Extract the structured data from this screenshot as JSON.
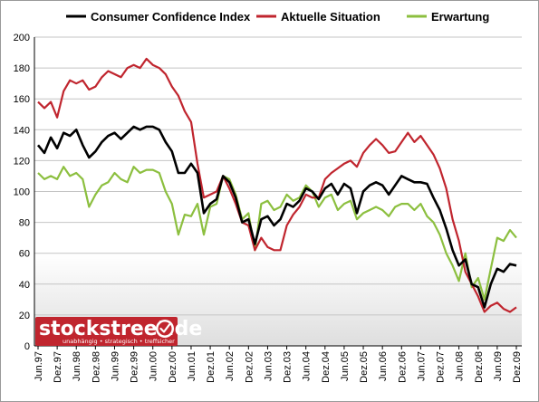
{
  "chart_data": {
    "type": "line",
    "title": "",
    "xlabel": "",
    "ylabel": "",
    "ylim": [
      0,
      200
    ],
    "yticks": [
      0,
      20,
      40,
      60,
      80,
      100,
      120,
      140,
      160,
      180,
      200
    ],
    "grid": "horizontal",
    "legend_position": "top",
    "x_range": [
      "1997-06",
      "2009-12"
    ],
    "xtick_labels": [
      "Jun.97",
      "Dez.97",
      "Jun.98",
      "Dez.98",
      "Jun.99",
      "Dez.99",
      "Jun.00",
      "Dez.00",
      "Jun.01",
      "Dez.01",
      "Jun.02",
      "Dez.02",
      "Jun.03",
      "Dez.03",
      "Jun.04",
      "Dez.04",
      "Jun.05",
      "Dez.05",
      "Jun.06",
      "Dez.06",
      "Jun.07",
      "Dez.07",
      "Jun.08",
      "Dez.08",
      "Jun.09",
      "Dez.09"
    ],
    "series": [
      {
        "name": "Consumer Confidence Index",
        "color": "#000000",
        "points": [
          [
            "1997-06",
            130
          ],
          [
            "1997-08",
            125
          ],
          [
            "1997-10",
            135
          ],
          [
            "1997-12",
            128
          ],
          [
            "1998-02",
            138
          ],
          [
            "1998-04",
            136
          ],
          [
            "1998-06",
            140
          ],
          [
            "1998-08",
            130
          ],
          [
            "1998-10",
            122
          ],
          [
            "1998-12",
            126
          ],
          [
            "1999-02",
            132
          ],
          [
            "1999-04",
            136
          ],
          [
            "1999-06",
            138
          ],
          [
            "1999-08",
            134
          ],
          [
            "1999-10",
            138
          ],
          [
            "1999-12",
            142
          ],
          [
            "2000-02",
            140
          ],
          [
            "2000-04",
            142
          ],
          [
            "2000-06",
            142
          ],
          [
            "2000-08",
            140
          ],
          [
            "2000-10",
            132
          ],
          [
            "2000-12",
            126
          ],
          [
            "2001-02",
            112
          ],
          [
            "2001-04",
            112
          ],
          [
            "2001-06",
            118
          ],
          [
            "2001-08",
            112
          ],
          [
            "2001-10",
            86
          ],
          [
            "2001-12",
            92
          ],
          [
            "2002-02",
            95
          ],
          [
            "2002-04",
            110
          ],
          [
            "2002-06",
            106
          ],
          [
            "2002-08",
            96
          ],
          [
            "2002-10",
            80
          ],
          [
            "2002-12",
            82
          ],
          [
            "2003-02",
            66
          ],
          [
            "2003-04",
            82
          ],
          [
            "2003-06",
            84
          ],
          [
            "2003-08",
            78
          ],
          [
            "2003-10",
            82
          ],
          [
            "2003-12",
            92
          ],
          [
            "2004-02",
            90
          ],
          [
            "2004-04",
            94
          ],
          [
            "2004-06",
            102
          ],
          [
            "2004-08",
            100
          ],
          [
            "2004-10",
            95
          ],
          [
            "2004-12",
            102
          ],
          [
            "2005-02",
            105
          ],
          [
            "2005-04",
            98
          ],
          [
            "2005-06",
            105
          ],
          [
            "2005-08",
            102
          ],
          [
            "2005-10",
            86
          ],
          [
            "2005-12",
            100
          ],
          [
            "2006-02",
            104
          ],
          [
            "2006-04",
            106
          ],
          [
            "2006-06",
            104
          ],
          [
            "2006-08",
            98
          ],
          [
            "2006-10",
            104
          ],
          [
            "2006-12",
            110
          ],
          [
            "2007-02",
            108
          ],
          [
            "2007-04",
            106
          ],
          [
            "2007-06",
            106
          ],
          [
            "2007-08",
            105
          ],
          [
            "2007-10",
            96
          ],
          [
            "2007-12",
            88
          ],
          [
            "2008-02",
            76
          ],
          [
            "2008-04",
            62
          ],
          [
            "2008-06",
            52
          ],
          [
            "2008-08",
            56
          ],
          [
            "2008-10",
            40
          ],
          [
            "2008-12",
            38
          ],
          [
            "2009-02",
            25
          ],
          [
            "2009-04",
            40
          ],
          [
            "2009-06",
            50
          ],
          [
            "2009-08",
            48
          ],
          [
            "2009-10",
            53
          ],
          [
            "2009-12",
            52
          ]
        ]
      },
      {
        "name": "Aktuelle Situation",
        "color": "#c0252e",
        "points": [
          [
            "1997-06",
            158
          ],
          [
            "1997-08",
            154
          ],
          [
            "1997-10",
            158
          ],
          [
            "1997-12",
            148
          ],
          [
            "1998-02",
            165
          ],
          [
            "1998-04",
            172
          ],
          [
            "1998-06",
            170
          ],
          [
            "1998-08",
            172
          ],
          [
            "1998-10",
            166
          ],
          [
            "1998-12",
            168
          ],
          [
            "1999-02",
            174
          ],
          [
            "1999-04",
            178
          ],
          [
            "1999-06",
            176
          ],
          [
            "1999-08",
            174
          ],
          [
            "1999-10",
            180
          ],
          [
            "1999-12",
            182
          ],
          [
            "2000-02",
            180
          ],
          [
            "2000-04",
            186
          ],
          [
            "2000-06",
            182
          ],
          [
            "2000-08",
            180
          ],
          [
            "2000-10",
            176
          ],
          [
            "2000-12",
            168
          ],
          [
            "2001-02",
            162
          ],
          [
            "2001-04",
            152
          ],
          [
            "2001-06",
            145
          ],
          [
            "2001-08",
            118
          ],
          [
            "2001-10",
            96
          ],
          [
            "2001-12",
            98
          ],
          [
            "2002-02",
            100
          ],
          [
            "2002-04",
            110
          ],
          [
            "2002-06",
            102
          ],
          [
            "2002-08",
            92
          ],
          [
            "2002-10",
            80
          ],
          [
            "2002-12",
            78
          ],
          [
            "2003-02",
            62
          ],
          [
            "2003-04",
            70
          ],
          [
            "2003-06",
            64
          ],
          [
            "2003-08",
            62
          ],
          [
            "2003-10",
            62
          ],
          [
            "2003-12",
            78
          ],
          [
            "2004-02",
            85
          ],
          [
            "2004-04",
            90
          ],
          [
            "2004-06",
            98
          ],
          [
            "2004-08",
            96
          ],
          [
            "2004-10",
            96
          ],
          [
            "2004-12",
            108
          ],
          [
            "2005-02",
            112
          ],
          [
            "2005-04",
            115
          ],
          [
            "2005-06",
            118
          ],
          [
            "2005-08",
            120
          ],
          [
            "2005-10",
            116
          ],
          [
            "2005-12",
            125
          ],
          [
            "2006-02",
            130
          ],
          [
            "2006-04",
            134
          ],
          [
            "2006-06",
            130
          ],
          [
            "2006-08",
            125
          ],
          [
            "2006-10",
            126
          ],
          [
            "2006-12",
            132
          ],
          [
            "2007-02",
            138
          ],
          [
            "2007-04",
            132
          ],
          [
            "2007-06",
            136
          ],
          [
            "2007-08",
            130
          ],
          [
            "2007-10",
            124
          ],
          [
            "2007-12",
            115
          ],
          [
            "2008-02",
            102
          ],
          [
            "2008-04",
            82
          ],
          [
            "2008-06",
            68
          ],
          [
            "2008-08",
            48
          ],
          [
            "2008-10",
            40
          ],
          [
            "2008-12",
            32
          ],
          [
            "2009-02",
            22
          ],
          [
            "2009-04",
            26
          ],
          [
            "2009-06",
            28
          ],
          [
            "2009-08",
            24
          ],
          [
            "2009-10",
            22
          ],
          [
            "2009-12",
            25
          ]
        ]
      },
      {
        "name": "Erwartung",
        "color": "#8cbf3f",
        "points": [
          [
            "1997-06",
            112
          ],
          [
            "1997-08",
            108
          ],
          [
            "1997-10",
            110
          ],
          [
            "1997-12",
            108
          ],
          [
            "1998-02",
            116
          ],
          [
            "1998-04",
            110
          ],
          [
            "1998-06",
            112
          ],
          [
            "1998-08",
            108
          ],
          [
            "1998-10",
            90
          ],
          [
            "1998-12",
            98
          ],
          [
            "1999-02",
            104
          ],
          [
            "1999-04",
            106
          ],
          [
            "1999-06",
            112
          ],
          [
            "1999-08",
            108
          ],
          [
            "1999-10",
            106
          ],
          [
            "1999-12",
            116
          ],
          [
            "2000-02",
            112
          ],
          [
            "2000-04",
            114
          ],
          [
            "2000-06",
            114
          ],
          [
            "2000-08",
            112
          ],
          [
            "2000-10",
            100
          ],
          [
            "2000-12",
            92
          ],
          [
            "2001-02",
            72
          ],
          [
            "2001-04",
            85
          ],
          [
            "2001-06",
            84
          ],
          [
            "2001-08",
            92
          ],
          [
            "2001-10",
            72
          ],
          [
            "2001-12",
            90
          ],
          [
            "2002-02",
            92
          ],
          [
            "2002-04",
            110
          ],
          [
            "2002-06",
            108
          ],
          [
            "2002-08",
            98
          ],
          [
            "2002-10",
            82
          ],
          [
            "2002-12",
            86
          ],
          [
            "2003-02",
            62
          ],
          [
            "2003-04",
            92
          ],
          [
            "2003-06",
            94
          ],
          [
            "2003-08",
            88
          ],
          [
            "2003-10",
            90
          ],
          [
            "2003-12",
            98
          ],
          [
            "2004-02",
            94
          ],
          [
            "2004-04",
            96
          ],
          [
            "2004-06",
            104
          ],
          [
            "2004-08",
            100
          ],
          [
            "2004-10",
            90
          ],
          [
            "2004-12",
            96
          ],
          [
            "2005-02",
            98
          ],
          [
            "2005-04",
            88
          ],
          [
            "2005-06",
            92
          ],
          [
            "2005-08",
            94
          ],
          [
            "2005-10",
            82
          ],
          [
            "2005-12",
            86
          ],
          [
            "2006-02",
            88
          ],
          [
            "2006-04",
            90
          ],
          [
            "2006-06",
            88
          ],
          [
            "2006-08",
            84
          ],
          [
            "2006-10",
            90
          ],
          [
            "2006-12",
            92
          ],
          [
            "2007-02",
            92
          ],
          [
            "2007-04",
            88
          ],
          [
            "2007-06",
            92
          ],
          [
            "2007-08",
            84
          ],
          [
            "2007-10",
            80
          ],
          [
            "2007-12",
            72
          ],
          [
            "2008-02",
            60
          ],
          [
            "2008-04",
            52
          ],
          [
            "2008-06",
            42
          ],
          [
            "2008-08",
            60
          ],
          [
            "2008-10",
            38
          ],
          [
            "2008-12",
            44
          ],
          [
            "2009-02",
            30
          ],
          [
            "2009-04",
            50
          ],
          [
            "2009-06",
            70
          ],
          [
            "2009-08",
            68
          ],
          [
            "2009-10",
            75
          ],
          [
            "2009-12",
            70
          ]
        ]
      }
    ]
  },
  "logo": {
    "name": "stockstreet.de",
    "tagline": "unabhängig • strategisch • treffsicher",
    "color": "#c0252e"
  }
}
